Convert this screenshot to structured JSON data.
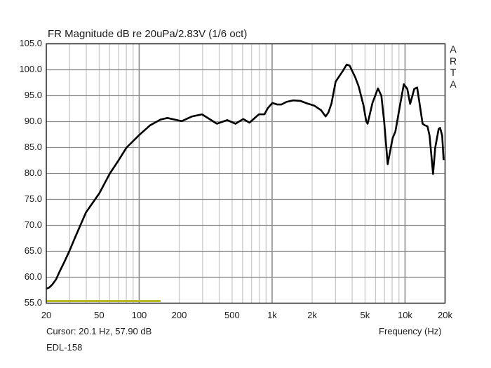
{
  "chart_data": {
    "type": "line",
    "title": "FR Magnitude dB re 20uPa/2.83V (1/6 oct)",
    "xlabel": "Frequency (Hz)",
    "ylabel": "",
    "xscale": "log",
    "xlim": [
      20,
      20000
    ],
    "ylim": [
      55,
      105
    ],
    "grid": true,
    "x_ticks": [
      {
        "value": 20,
        "label": "20"
      },
      {
        "value": 50,
        "label": "50"
      },
      {
        "value": 100,
        "label": "100"
      },
      {
        "value": 200,
        "label": "200"
      },
      {
        "value": 500,
        "label": "500"
      },
      {
        "value": 1000,
        "label": "1k"
      },
      {
        "value": 2000,
        "label": "2k"
      },
      {
        "value": 5000,
        "label": "5k"
      },
      {
        "value": 10000,
        "label": "10k"
      },
      {
        "value": 20000,
        "label": "20k"
      }
    ],
    "y_ticks": [
      "105.0",
      "100.0",
      "95.0",
      "90.0",
      "85.0",
      "80.0",
      "75.0",
      "70.0",
      "65.0",
      "60.0",
      "55.0"
    ],
    "watermark": [
      "A",
      "R",
      "T",
      "A"
    ],
    "cursor_text": "Cursor: 20.1 Hz, 57.90 dB",
    "series_label": "EDL-158",
    "series": [
      {
        "name": "EDL-158",
        "color": "#000000",
        "x": [
          20,
          21,
          22.2,
          23.7,
          25.2,
          27.4,
          29.9,
          32.6,
          39.8,
          50.2,
          60.1,
          70.2,
          80.3,
          99.9,
          121,
          145,
          163,
          209,
          250,
          297,
          384,
          459,
          530,
          606,
          675,
          795,
          875,
          928,
          1004,
          1096,
          1173,
          1280,
          1443,
          1628,
          1836,
          2070,
          2335,
          2524,
          2656,
          2798,
          3005,
          3390,
          3642,
          3825,
          4213,
          4476,
          4862,
          5101,
          5228,
          5687,
          6253,
          6636,
          6967,
          7401,
          8059,
          8461,
          9100,
          9787,
          10399,
          10917,
          11734,
          12325,
          13560,
          14052,
          14745,
          15293,
          16253,
          16863,
          17904,
          18339,
          19018,
          19490
        ],
        "y": [
          57.8,
          58.0,
          58.6,
          59.6,
          61.1,
          63.0,
          65.1,
          67.4,
          72.5,
          76.2,
          80.0,
          82.6,
          85.0,
          87.4,
          89.3,
          90.4,
          90.7,
          90.1,
          91.0,
          91.4,
          89.6,
          90.3,
          89.6,
          90.5,
          89.8,
          91.4,
          91.4,
          92.6,
          93.6,
          93.3,
          93.3,
          93.8,
          94.1,
          94.0,
          93.5,
          93.1,
          92.2,
          91.0,
          91.8,
          93.5,
          97.7,
          99.7,
          101.0,
          100.8,
          98.6,
          96.8,
          93.2,
          90.1,
          89.6,
          93.6,
          96.4,
          95.0,
          90.0,
          81.8,
          86.8,
          88.1,
          92.7,
          97.2,
          96.3,
          93.4,
          96.3,
          96.6,
          89.6,
          89.3,
          89.1,
          87.3,
          79.9,
          85.0,
          88.6,
          88.8,
          87.3,
          82.6
        ]
      }
    ],
    "cursor_marker": {
      "color": "#b8b828",
      "x_start": 20,
      "x_end": 145,
      "y": 55.4
    }
  }
}
